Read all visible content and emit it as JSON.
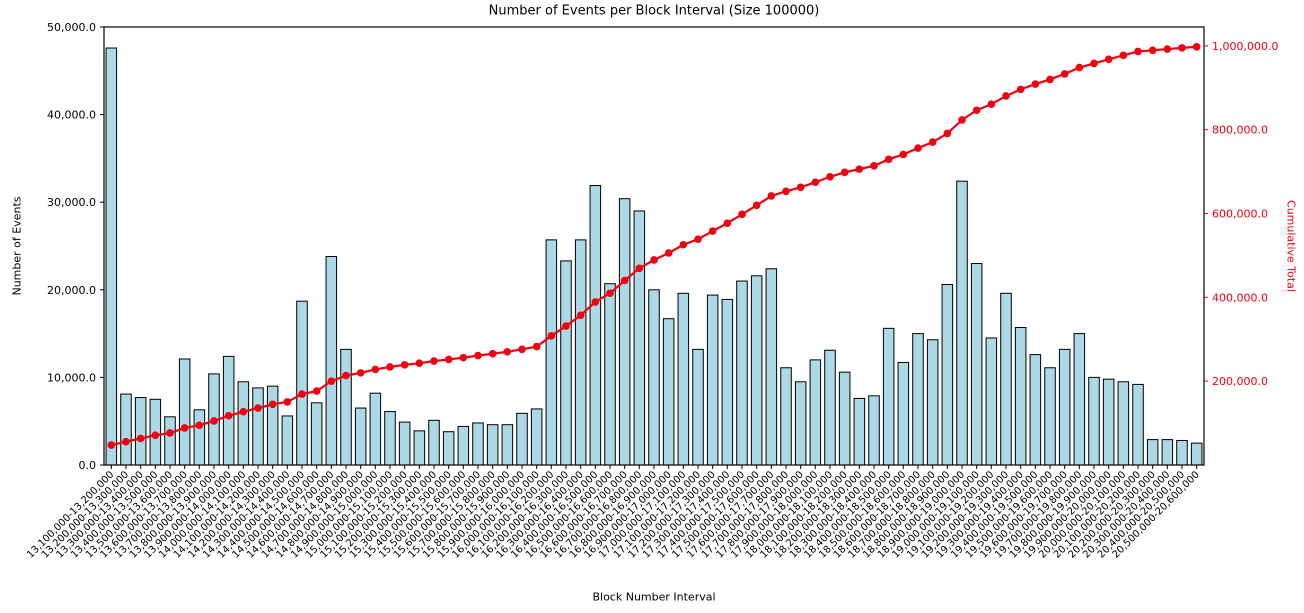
{
  "chart_data": {
    "type": "bar+line",
    "title": "Number of Events per Block Interval (Size 100000)",
    "xlabel": "Block Number Interval",
    "ylabel": "Number of Events",
    "y2label": "Cumulative Total",
    "ylim": [
      0,
      50000
    ],
    "y2lim": [
      0,
      1045000
    ],
    "grid": false,
    "legend_position": "none",
    "bar_color": "#ADD8E6",
    "bar_edge_color": "#000000",
    "line_color": "#F00010",
    "axis_color": "#000000",
    "y_tick_values": [
      0,
      10000,
      20000,
      30000,
      40000,
      50000
    ],
    "y_tick_labels": [
      "0.0",
      "10,000.0",
      "20,000.0",
      "30,000.0",
      "40,000.0",
      "50,000.0"
    ],
    "y2_tick_values": [
      200000,
      400000,
      600000,
      800000,
      1000000
    ],
    "y2_tick_labels": [
      "200,000.0",
      "400,000.0",
      "600,000.0",
      "800,000.0",
      "1,000,000.0"
    ],
    "categories": [
      "13,100,000-13,200,000",
      "13,200,000-13,300,000",
      "13,300,000-13,400,000",
      "13,400,000-13,500,000",
      "13,500,000-13,600,000",
      "13,600,000-13,700,000",
      "13,700,000-13,800,000",
      "13,800,000-13,900,000",
      "13,900,000-14,000,000",
      "14,000,000-14,100,000",
      "14,100,000-14,200,000",
      "14,200,000-14,300,000",
      "14,300,000-14,400,000",
      "14,400,000-14,500,000",
      "14,500,000-14,600,000",
      "14,600,000-14,700,000",
      "14,700,000-14,800,000",
      "14,800,000-14,900,000",
      "14,900,000-15,000,000",
      "15,000,000-15,100,000",
      "15,100,000-15,200,000",
      "15,200,000-15,300,000",
      "15,300,000-15,400,000",
      "15,400,000-15,500,000",
      "15,500,000-15,600,000",
      "15,600,000-15,700,000",
      "15,700,000-15,800,000",
      "15,800,000-15,900,000",
      "15,900,000-16,000,000",
      "16,000,000-16,100,000",
      "16,100,000-16,200,000",
      "16,200,000-16,300,000",
      "16,300,000-16,400,000",
      "16,400,000-16,500,000",
      "16,500,000-16,600,000",
      "16,600,000-16,700,000",
      "16,700,000-16,800,000",
      "16,800,000-16,900,000",
      "16,900,000-17,000,000",
      "17,000,000-17,100,000",
      "17,100,000-17,200,000",
      "17,200,000-17,300,000",
      "17,300,000-17,400,000",
      "17,400,000-17,500,000",
      "17,500,000-17,600,000",
      "17,600,000-17,700,000",
      "17,700,000-17,800,000",
      "17,800,000-17,900,000",
      "17,900,000-18,000,000",
      "18,000,000-18,100,000",
      "18,100,000-18,200,000",
      "18,200,000-18,300,000",
      "18,300,000-18,400,000",
      "18,400,000-18,500,000",
      "18,500,000-18,600,000",
      "18,600,000-18,700,000",
      "18,700,000-18,800,000",
      "18,800,000-18,900,000",
      "18,900,000-19,000,000",
      "19,000,000-19,100,000",
      "19,100,000-19,200,000",
      "19,200,000-19,300,000",
      "19,300,000-19,400,000",
      "19,400,000-19,500,000",
      "19,500,000-19,600,000",
      "19,600,000-19,700,000",
      "19,700,000-19,800,000",
      "19,800,000-19,900,000",
      "19,900,000-20,000,000",
      "20,000,000-20,100,000",
      "20,100,000-20,200,000",
      "20,200,000-20,300,000",
      "20,300,000-20,400,000",
      "20,400,000-20,500,000",
      "20,500,000-20,600,000"
    ],
    "series": [
      {
        "name": "Number of Events",
        "type": "bar",
        "values": [
          47600,
          8100,
          7700,
          7500,
          5500,
          12100,
          6300,
          10400,
          12400,
          9500,
          8800,
          9000,
          5600,
          18700,
          7100,
          23800,
          13200,
          6500,
          8200,
          6100,
          4900,
          3900,
          5100,
          3800,
          4400,
          4800,
          4600,
          4600,
          5900,
          6400,
          25700,
          23300,
          25700,
          31900,
          20700,
          30400,
          29000,
          20000,
          16700,
          19600,
          13200,
          19400,
          18900,
          21000,
          21600,
          22400,
          11100,
          9500,
          12000,
          13100,
          10600,
          7600,
          7900,
          15600,
          11700,
          15000,
          14300,
          20600,
          32400,
          23000,
          14500,
          19600,
          15700,
          12600,
          11100,
          13200,
          15000,
          10000,
          9800,
          9500,
          9200,
          2900,
          2900,
          2800,
          2500
        ]
      },
      {
        "name": "Cumulative Total",
        "type": "line",
        "values": [
          47600,
          55700,
          63400,
          70900,
          76400,
          88500,
          94800,
          105200,
          117600,
          127100,
          135900,
          144900,
          150500,
          169200,
          176300,
          200100,
          213300,
          219800,
          228000,
          234100,
          239000,
          242900,
          248000,
          251800,
          256200,
          261000,
          265600,
          270200,
          276100,
          282500,
          308200,
          331500,
          357200,
          389100,
          409800,
          440200,
          469200,
          489200,
          505900,
          525500,
          538700,
          558100,
          577000,
          598000,
          619600,
          642000,
          653100,
          662600,
          674600,
          687700,
          698300,
          705900,
          713800,
          729400,
          741100,
          756100,
          770400,
          791000,
          823400,
          846400,
          860900,
          880500,
          896200,
          908800,
          919900,
          933100,
          948100,
          958100,
          967900,
          977400,
          986600,
          989500,
          992400,
          995200,
          997700
        ]
      }
    ]
  }
}
